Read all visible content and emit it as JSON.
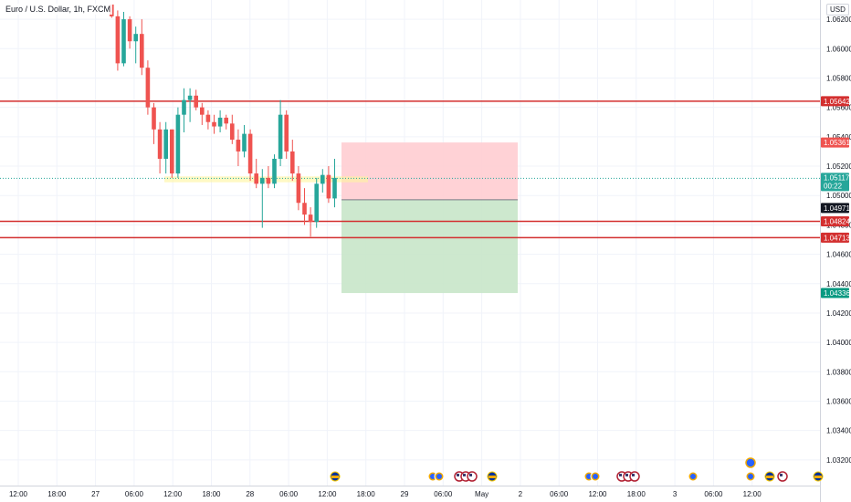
{
  "header": {
    "symbol_title": "Euro / U.S. Dollar, 1h, FXCM",
    "currency": "USD"
  },
  "chart_data": {
    "type": "candlestick",
    "ylim": [
      1.0305,
      1.063
    ],
    "y_ticks": [
      "1.06200",
      "1.06000",
      "1.05800",
      "1.05600",
      "1.05400",
      "1.05200",
      "1.05000",
      "1.04800",
      "1.04600",
      "1.04400",
      "1.04200",
      "1.04000",
      "1.03800",
      "1.03600",
      "1.03400",
      "1.03200"
    ],
    "x_ticks": [
      "12:00",
      "18:00",
      "27",
      "06:00",
      "12:00",
      "18:00",
      "28",
      "06:00",
      "12:00",
      "18:00",
      "29",
      "06:00",
      "May",
      "2",
      "06:00",
      "12:00",
      "18:00",
      "3",
      "06:00",
      "12:00"
    ],
    "candles": [
      {
        "o": 1.063,
        "h": 1.063,
        "l": 1.0621,
        "c": 1.0622
      },
      {
        "o": 1.0622,
        "h": 1.0626,
        "l": 1.0585,
        "c": 1.059
      },
      {
        "o": 1.059,
        "h": 1.0625,
        "l": 1.0588,
        "c": 1.062
      },
      {
        "o": 1.062,
        "h": 1.0622,
        "l": 1.06,
        "c": 1.0605
      },
      {
        "o": 1.0605,
        "h": 1.0615,
        "l": 1.059,
        "c": 1.061
      },
      {
        "o": 1.061,
        "h": 1.062,
        "l": 1.0582,
        "c": 1.0587
      },
      {
        "o": 1.0587,
        "h": 1.0592,
        "l": 1.0555,
        "c": 1.056
      },
      {
        "o": 1.056,
        "h": 1.0563,
        "l": 1.0535,
        "c": 1.0545
      },
      {
        "o": 1.0545,
        "h": 1.055,
        "l": 1.0515,
        "c": 1.0525
      },
      {
        "o": 1.0525,
        "h": 1.055,
        "l": 1.0515,
        "c": 1.0545
      },
      {
        "o": 1.0545,
        "h": 1.0545,
        "l": 1.0512,
        "c": 1.0515
      },
      {
        "o": 1.0515,
        "h": 1.056,
        "l": 1.0512,
        "c": 1.0555
      },
      {
        "o": 1.0555,
        "h": 1.0573,
        "l": 1.0543,
        "c": 1.0565
      },
      {
        "o": 1.0565,
        "h": 1.0573,
        "l": 1.055,
        "c": 1.0568
      },
      {
        "o": 1.0568,
        "h": 1.0572,
        "l": 1.0558,
        "c": 1.056
      },
      {
        "o": 1.056,
        "h": 1.0563,
        "l": 1.0548,
        "c": 1.0555
      },
      {
        "o": 1.0555,
        "h": 1.0558,
        "l": 1.0545,
        "c": 1.055
      },
      {
        "o": 1.055,
        "h": 1.0555,
        "l": 1.0542,
        "c": 1.0547
      },
      {
        "o": 1.0547,
        "h": 1.0558,
        "l": 1.0543,
        "c": 1.0553
      },
      {
        "o": 1.0553,
        "h": 1.0555,
        "l": 1.0545,
        "c": 1.0549
      },
      {
        "o": 1.0549,
        "h": 1.0555,
        "l": 1.0535,
        "c": 1.0538
      },
      {
        "o": 1.0538,
        "h": 1.0545,
        "l": 1.052,
        "c": 1.053
      },
      {
        "o": 1.053,
        "h": 1.0548,
        "l": 1.0526,
        "c": 1.0542
      },
      {
        "o": 1.0542,
        "h": 1.0545,
        "l": 1.051,
        "c": 1.0515
      },
      {
        "o": 1.0515,
        "h": 1.0525,
        "l": 1.0505,
        "c": 1.0508
      },
      {
        "o": 1.0508,
        "h": 1.0518,
        "l": 1.0478,
        "c": 1.0512
      },
      {
        "o": 1.0512,
        "h": 1.052,
        "l": 1.0505,
        "c": 1.0508
      },
      {
        "o": 1.0508,
        "h": 1.0528,
        "l": 1.0505,
        "c": 1.0525
      },
      {
        "o": 1.0525,
        "h": 1.0565,
        "l": 1.052,
        "c": 1.0555
      },
      {
        "o": 1.0555,
        "h": 1.0558,
        "l": 1.0525,
        "c": 1.053
      },
      {
        "o": 1.053,
        "h": 1.0538,
        "l": 1.051,
        "c": 1.0515
      },
      {
        "o": 1.0515,
        "h": 1.052,
        "l": 1.049,
        "c": 1.0495
      },
      {
        "o": 1.0495,
        "h": 1.0505,
        "l": 1.048,
        "c": 1.0487
      },
      {
        "o": 1.0487,
        "h": 1.0492,
        "l": 1.0472,
        "c": 1.0482
      },
      {
        "o": 1.0482,
        "h": 1.0512,
        "l": 1.0478,
        "c": 1.0508
      },
      {
        "o": 1.0508,
        "h": 1.0518,
        "l": 1.0502,
        "c": 1.0514
      },
      {
        "o": 1.0514,
        "h": 1.052,
        "l": 1.0495,
        "c": 1.0498
      },
      {
        "o": 1.0498,
        "h": 1.0525,
        "l": 1.0492,
        "c": 1.0512
      }
    ],
    "horizontal_levels": [
      {
        "value": 1.05642,
        "label": "1.05642"
      },
      {
        "value": 1.04824,
        "label": "1.04824"
      },
      {
        "value": 1.04713,
        "label": "1.04713"
      }
    ],
    "current_price": {
      "value": 1.05117,
      "label": "1.05117",
      "countdown": "00:22"
    },
    "position": {
      "entry": 1.04971,
      "entry_label": "1.04971",
      "stop": 1.05361,
      "stop_label": "1.05361",
      "target": 1.04336,
      "target_label": "1.04336"
    },
    "highlight_zone": {
      "y0": 1.0509,
      "y1": 1.0513
    },
    "event_markers": [
      {
        "kind": "flag-eu"
      },
      {
        "kind": "coin"
      },
      {
        "kind": "coin"
      },
      {
        "kind": "flag-us"
      },
      {
        "kind": "flag-us"
      },
      {
        "kind": "flag-us"
      },
      {
        "kind": "flag-eu"
      },
      {
        "kind": "coin"
      },
      {
        "kind": "coin"
      },
      {
        "kind": "flag-us"
      },
      {
        "kind": "flag-us"
      },
      {
        "kind": "flag-us"
      },
      {
        "kind": "coin"
      },
      {
        "kind": "coin"
      },
      {
        "kind": "flag-eu"
      },
      {
        "kind": "flag-us"
      },
      {
        "kind": "flag-eu"
      }
    ],
    "colors": {
      "up": "#26a69a",
      "down": "#ef5350",
      "level": "#d32f2f",
      "grid": "#f0f3fa",
      "risk": "#ffcdd2",
      "reward": "#c8e6c9",
      "current": "#26a69a",
      "entry_tag": "#131722",
      "target_tag": "#089981",
      "highlight": "#fff59d"
    }
  }
}
